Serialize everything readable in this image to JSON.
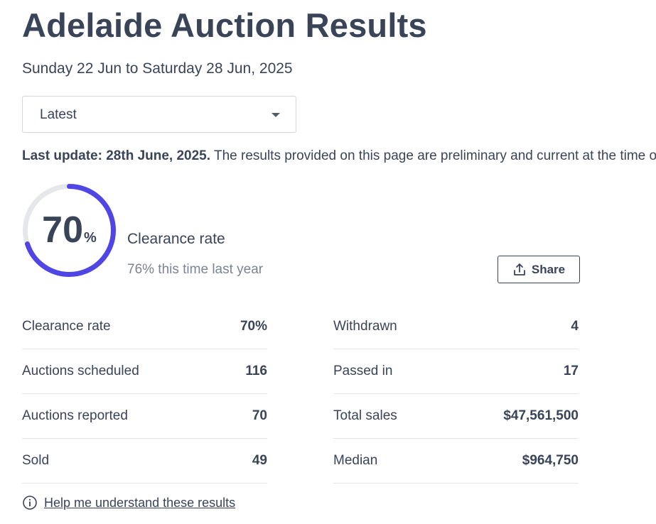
{
  "header": {
    "title": "Adelaide Auction Results",
    "date_range": "Sunday 22 Jun to Saturday 28 Jun, 2025"
  },
  "period_select": {
    "selected": "Latest"
  },
  "update_notice": {
    "bold_text": "Last update: 28th June, 2025.",
    "text": " The results provided on this page are preliminary and current at the time of publishing."
  },
  "summary": {
    "clearance_value": "70",
    "clearance_unit": "%",
    "clearance_fraction": 0.7,
    "clearance_label": "Clearance rate",
    "last_year_text": "76% this time last year",
    "share_label": "Share",
    "colors": {
      "gauge_fill": "#4f46e5",
      "gauge_track": "#e5e7eb",
      "text": "#3a4459"
    }
  },
  "stats": {
    "left": [
      {
        "label": "Clearance rate",
        "value": "70%"
      },
      {
        "label": "Auctions scheduled",
        "value": "116"
      },
      {
        "label": "Auctions reported",
        "value": "70"
      },
      {
        "label": "Sold",
        "value": "49"
      }
    ],
    "right": [
      {
        "label": "Withdrawn",
        "value": "4"
      },
      {
        "label": "Passed in",
        "value": "17"
      },
      {
        "label": "Total sales",
        "value": "$47,561,500"
      },
      {
        "label": "Median",
        "value": "$964,750"
      }
    ]
  },
  "help": {
    "label": "Help me understand these results",
    "icon": "info-icon"
  }
}
